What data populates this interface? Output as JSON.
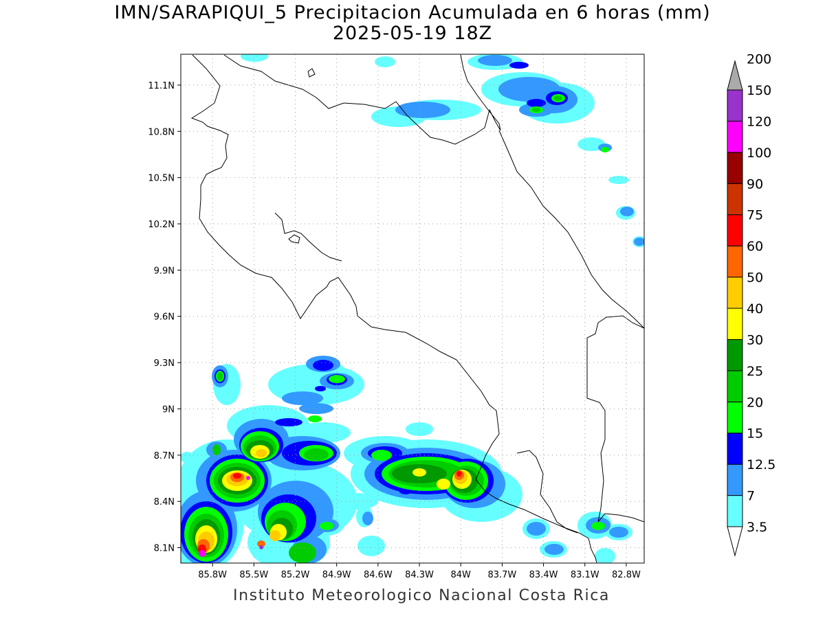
{
  "title_line1": "IMN/SARAPIQUI_5 Precipitacion Acumulada en 6 horas (mm)",
  "title_line2": "2025-05-19 18Z",
  "credit": "Instituto Meteorologico Nacional Costa Rica",
  "map": {
    "lon_range": [
      -86.03,
      -82.67
    ],
    "lat_range": [
      8.0,
      11.3
    ],
    "lat_ticks": [
      "11.1N",
      "10.8N",
      "10.5N",
      "10.2N",
      "9.9N",
      "9.6N",
      "9.3N",
      "9N",
      "8.7N",
      "8.4N",
      "8.1N"
    ],
    "lon_ticks": [
      "85.8W",
      "85.5W",
      "85.2W",
      "84.9W",
      "84.6W",
      "84.3W",
      "84W",
      "83.7W",
      "83.4W",
      "83.1W",
      "82.8W"
    ],
    "grid": "dotted"
  },
  "colorbar": {
    "levels": [
      "3.5",
      "7",
      "12.5",
      "15",
      "20",
      "25",
      "30",
      "40",
      "50",
      "60",
      "75",
      "90",
      "100",
      "120",
      "150",
      "200"
    ],
    "colors": [
      "#66ffff",
      "#3399ff",
      "#0000ff",
      "#00ff00",
      "#00cc00",
      "#009900",
      "#ffff00",
      "#ffcc00",
      "#ff6600",
      "#ff0000",
      "#cc3300",
      "#990000",
      "#ff00ff",
      "#9933cc",
      "#f2f2f2",
      "#aaaaaa"
    ]
  }
}
